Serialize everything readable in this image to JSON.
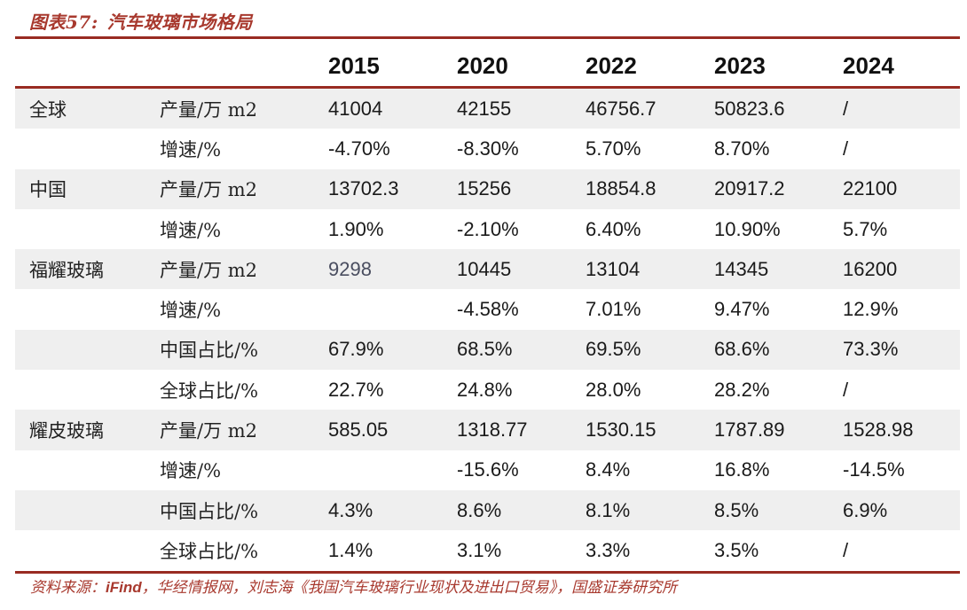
{
  "figure": {
    "caption_prefix": "图表57:",
    "caption_title": "汽车玻璃市场格局"
  },
  "source": {
    "prefix": "资料来源：",
    "ifind": "iFind",
    "rest": "，华经情报网，刘志海《我国汽车玻璃行业现状及进出口贸易》，国盛证券研究所"
  },
  "colors": {
    "accent_red_line": "#992b22",
    "accent_red_text": "#a8392e",
    "stripe_gray": "#efefef",
    "body_text": "#1a1a1a",
    "muted_value": "#4a4e60"
  },
  "chart_data": {
    "type": "table",
    "title": "汽车玻璃市场格局",
    "columns": [
      "2015",
      "2020",
      "2022",
      "2023",
      "2024"
    ],
    "rows": [
      {
        "group": "全球",
        "metric": "产量/万 m2",
        "values": [
          "41004",
          "42155",
          "46756.7",
          "50823.6",
          "/"
        ]
      },
      {
        "group": "",
        "metric": "增速/%",
        "values": [
          "-4.70%",
          "-8.30%",
          "5.70%",
          "8.70%",
          "/"
        ]
      },
      {
        "group": "中国",
        "metric": "产量/万 m2",
        "values": [
          "13702.3",
          "15256",
          "18854.8",
          "20917.2",
          "22100"
        ]
      },
      {
        "group": "",
        "metric": "增速/%",
        "values": [
          "1.90%",
          "-2.10%",
          "6.40%",
          "10.90%",
          "5.7%"
        ]
      },
      {
        "group": "福耀玻璃",
        "metric": "产量/万 m2",
        "values": [
          "9298",
          "10445",
          "13104",
          "14345",
          "16200"
        ]
      },
      {
        "group": "",
        "metric": "增速/%",
        "values": [
          "",
          "-4.58%",
          "7.01%",
          "9.47%",
          "12.9%"
        ]
      },
      {
        "group": "",
        "metric": "中国占比/%",
        "values": [
          "67.9%",
          "68.5%",
          "69.5%",
          "68.6%",
          "73.3%"
        ]
      },
      {
        "group": "",
        "metric": "全球占比/%",
        "values": [
          "22.7%",
          "24.8%",
          "28.0%",
          "28.2%",
          "/"
        ]
      },
      {
        "group": "耀皮玻璃",
        "metric": "产量/万 m2",
        "values": [
          "585.05",
          "1318.77",
          "1530.15",
          "1787.89",
          "1528.98"
        ]
      },
      {
        "group": "",
        "metric": "增速/%",
        "values": [
          "",
          "-15.6%",
          "8.4%",
          "16.8%",
          "-14.5%"
        ]
      },
      {
        "group": "",
        "metric": "中国占比/%",
        "values": [
          "4.3%",
          "8.6%",
          "8.1%",
          "8.5%",
          "6.9%"
        ]
      },
      {
        "group": "",
        "metric": "全球占比/%",
        "values": [
          "1.4%",
          "3.1%",
          "3.3%",
          "3.5%",
          "/"
        ]
      }
    ]
  }
}
